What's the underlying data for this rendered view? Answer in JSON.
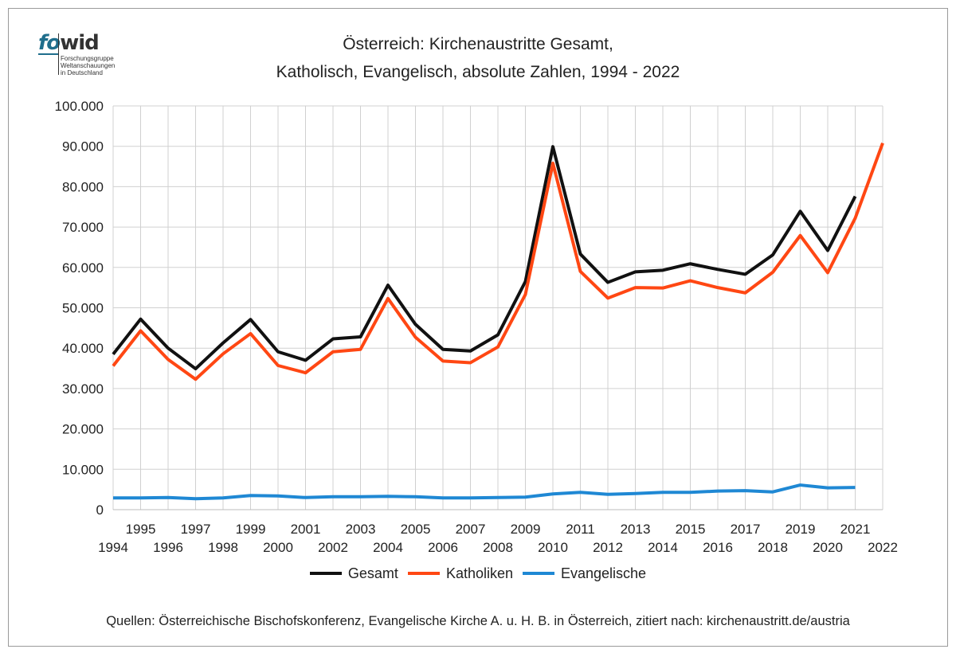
{
  "logo": {
    "mark_fo": "fo",
    "mark_wid": "wid",
    "sub": [
      "Forschungsgruppe",
      "Weltanschauungen",
      "in Deutschland"
    ]
  },
  "title_line1": "Österreich: Kirchenaustritte Gesamt,",
  "title_line2": "Katholisch, Evangelisch, absolute Zahlen, 1994 - 2022",
  "source": "Quellen: Österreichische Bischofskonferenz, Evangelische Kirche A. u. H. B. in Österreich, zitiert nach: kirchenaustritt.de/austria",
  "chart_data": {
    "type": "line",
    "x": [
      1994,
      1995,
      1996,
      1997,
      1998,
      1999,
      2000,
      2001,
      2002,
      2003,
      2004,
      2005,
      2006,
      2007,
      2008,
      2009,
      2010,
      2011,
      2012,
      2013,
      2014,
      2015,
      2016,
      2017,
      2018,
      2019,
      2020,
      2021,
      2022
    ],
    "ylim": [
      0,
      100000
    ],
    "yticks": [
      0,
      10000,
      20000,
      30000,
      40000,
      50000,
      60000,
      70000,
      80000,
      90000,
      100000
    ],
    "ytick_labels": [
      "0",
      "10.000",
      "20.000",
      "30.000",
      "40.000",
      "50.000",
      "60.000",
      "70.000",
      "80.000",
      "90.000",
      "100.000"
    ],
    "grid": true,
    "legend_position": "bottom",
    "series": [
      {
        "name": "Gesamt",
        "color": "#111111",
        "values": [
          38500,
          47200,
          40000,
          34900,
          41300,
          47100,
          39100,
          37000,
          42300,
          42800,
          55600,
          45900,
          39700,
          39300,
          43300,
          56500,
          89900,
          63300,
          56300,
          58900,
          59300,
          60900,
          59500,
          58300,
          63100,
          73900,
          64200,
          77600,
          null
        ]
      },
      {
        "name": "Katholiken",
        "color": "#ff4713",
        "values": [
          35600,
          44300,
          37200,
          32300,
          38600,
          43600,
          35700,
          33900,
          39100,
          39700,
          52300,
          42700,
          36800,
          36400,
          40300,
          53300,
          85800,
          59000,
          52400,
          55000,
          54900,
          56700,
          55000,
          53700,
          58800,
          67900,
          58700,
          72200,
          90800
        ]
      },
      {
        "name": "Evangelische",
        "color": "#1f88d4",
        "values": [
          2900,
          2900,
          3000,
          2700,
          2900,
          3500,
          3400,
          3000,
          3200,
          3200,
          3300,
          3200,
          2900,
          2900,
          3000,
          3100,
          3900,
          4300,
          3800,
          4000,
          4300,
          4300,
          4600,
          4700,
          4400,
          6100,
          5400,
          5500,
          null
        ]
      }
    ]
  }
}
